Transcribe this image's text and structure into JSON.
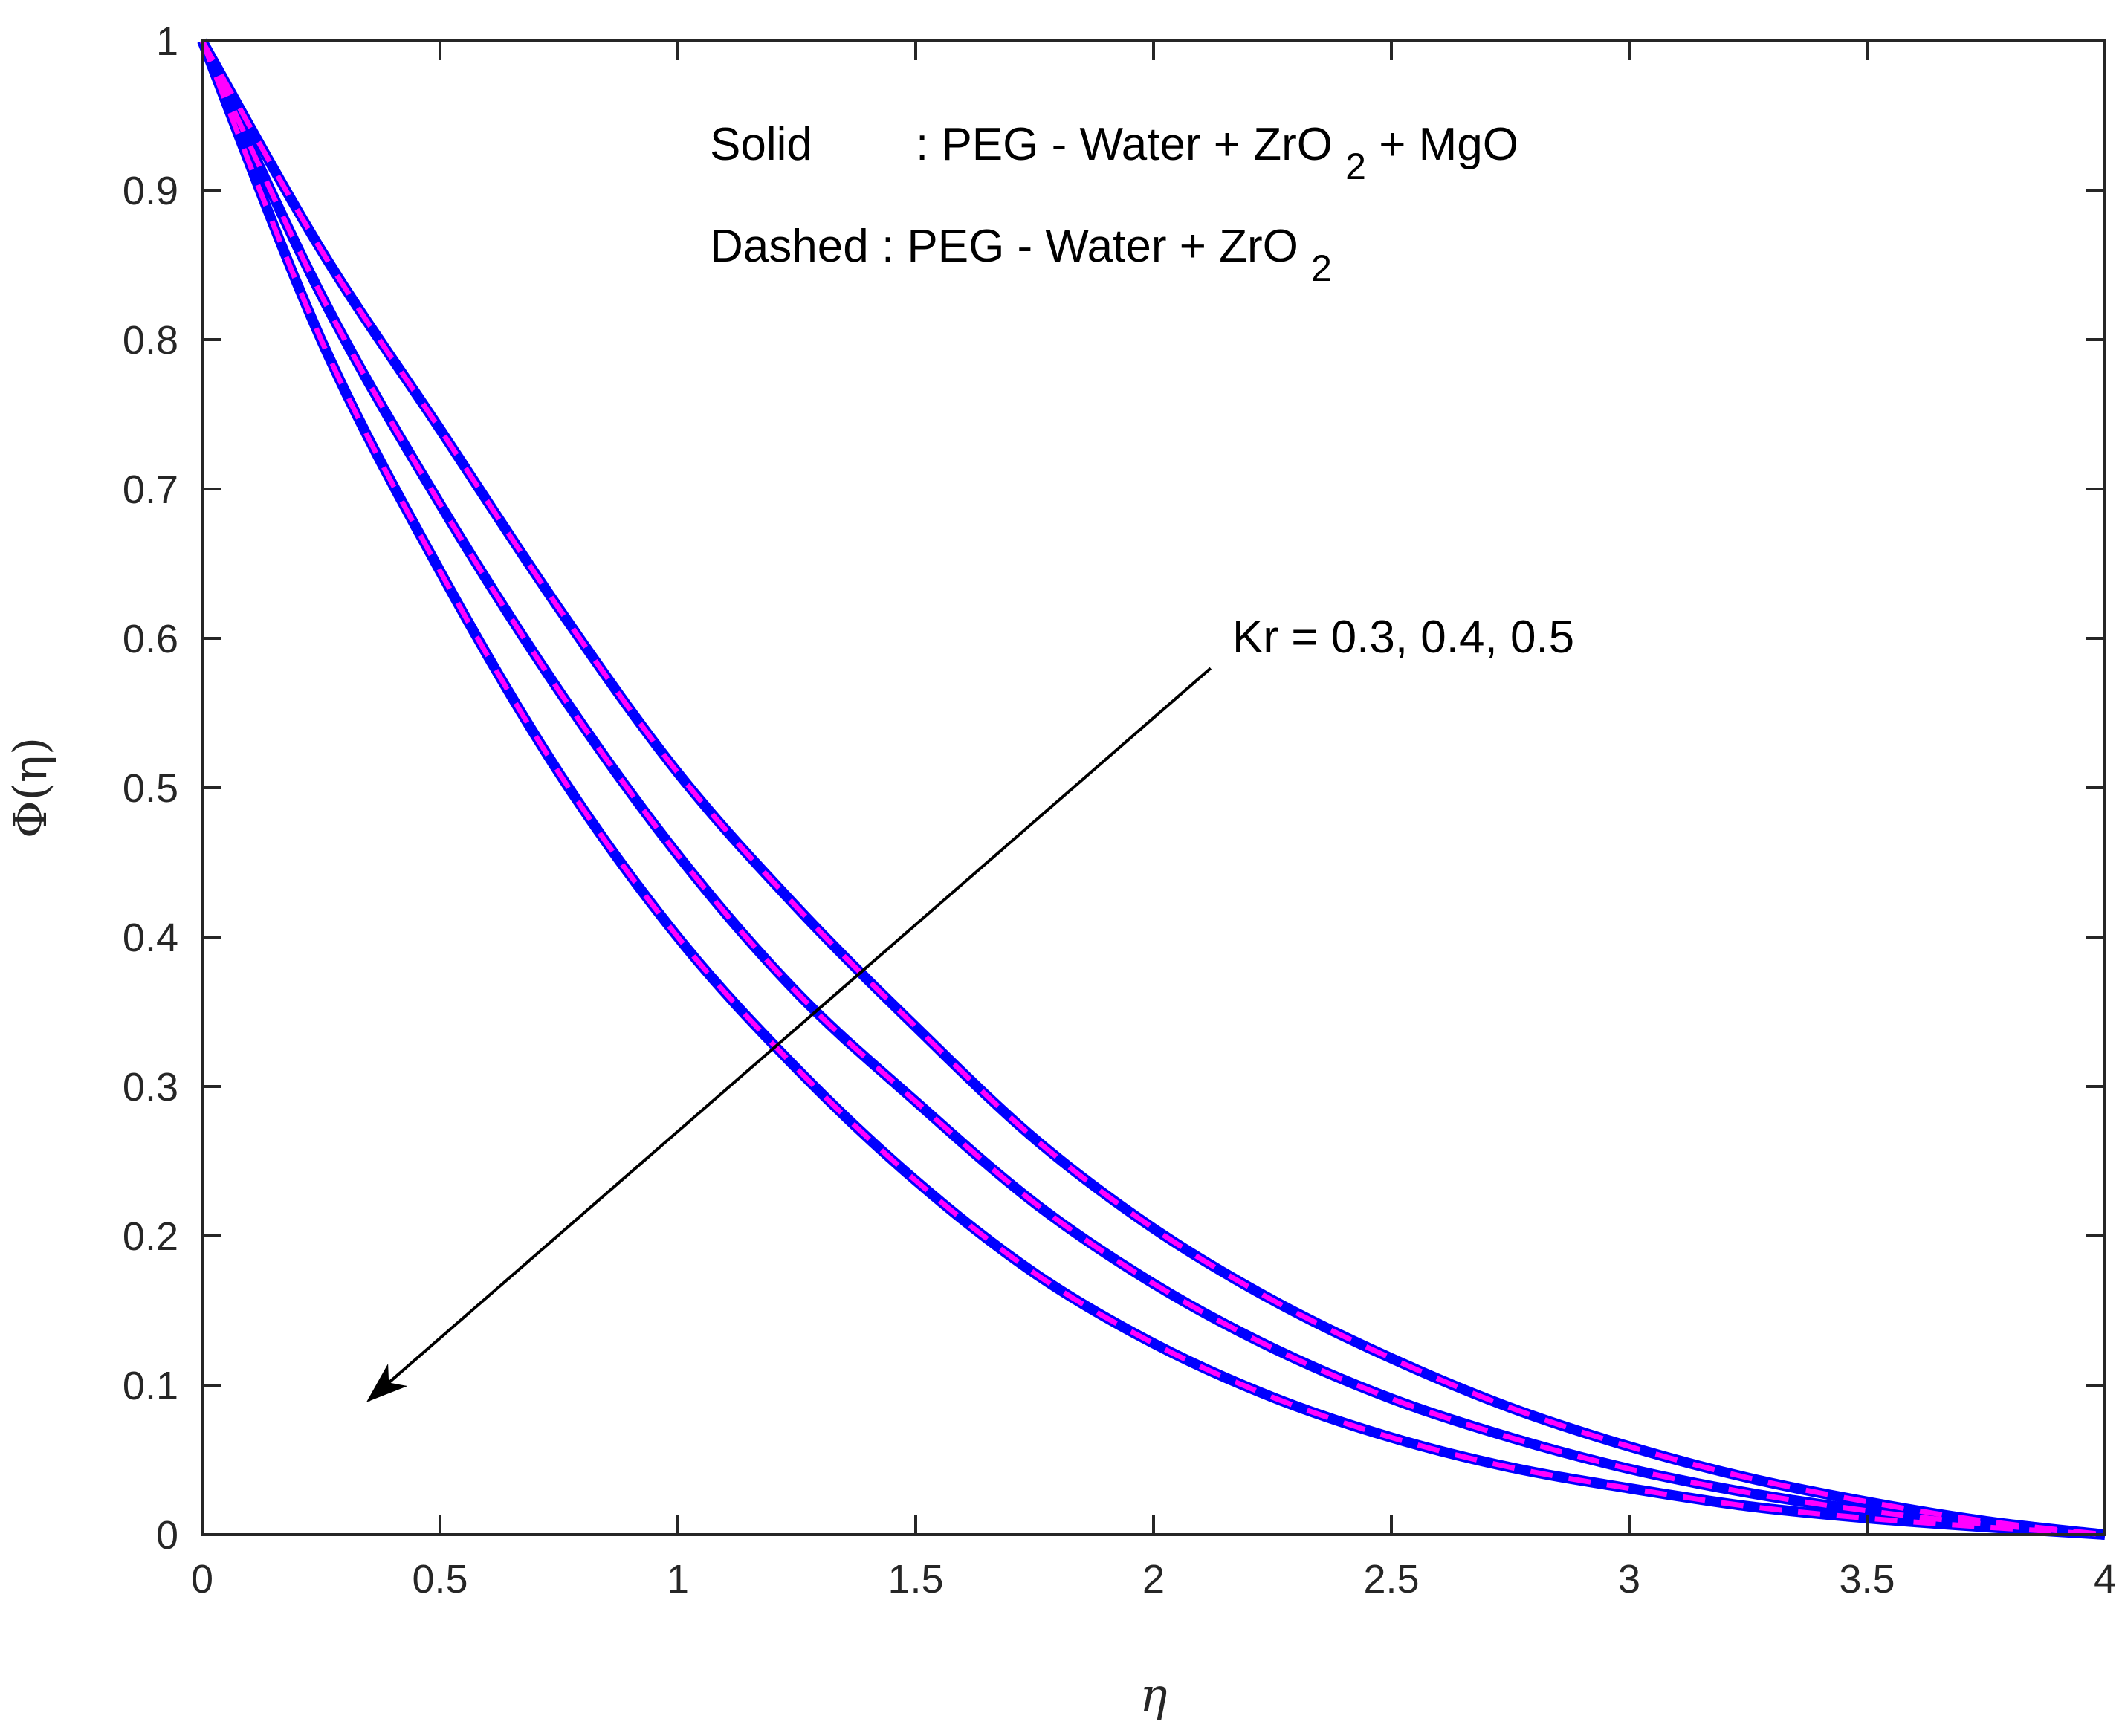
{
  "chart_data": {
    "type": "line",
    "title": "",
    "xlabel": "η",
    "ylabel": "Φ(η)",
    "xlim": [
      0,
      4
    ],
    "ylim": [
      0,
      1
    ],
    "xticks": [
      0,
      0.5,
      1,
      1.5,
      2,
      2.5,
      3,
      3.5,
      4
    ],
    "xtick_labels": [
      "0",
      "0.5",
      "1",
      "1.5",
      "2",
      "2.5",
      "3",
      "3.5",
      "4"
    ],
    "yticks": [
      0,
      0.1,
      0.2,
      0.3,
      0.4,
      0.5,
      0.6,
      0.7,
      0.8,
      0.9,
      1
    ],
    "ytick_labels": [
      "0",
      "0.1",
      "0.2",
      "0.3",
      "0.4",
      "0.5",
      "0.6",
      "0.7",
      "0.8",
      "0.9",
      "1"
    ],
    "grid": false,
    "x": [
      0,
      0.25,
      0.5,
      0.75,
      1,
      1.25,
      1.5,
      1.75,
      2,
      2.25,
      2.5,
      2.75,
      3,
      3.25,
      3.5,
      3.75,
      4
    ],
    "series": [
      {
        "name": "Kr = 0.3 (PEG - Water + ZrO2 + MgO)",
        "style": "solid",
        "color": "#0000ff",
        "values": [
          1,
          0.86,
          0.74,
          0.62,
          0.51,
          0.42,
          0.34,
          0.265,
          0.205,
          0.157,
          0.118,
          0.085,
          0.059,
          0.038,
          0.022,
          0.009,
          0
        ]
      },
      {
        "name": "Kr = 0.4 (PEG - Water + ZrO2 + MgO)",
        "style": "solid",
        "color": "#0000ff",
        "values": [
          1,
          0.83,
          0.69,
          0.565,
          0.455,
          0.363,
          0.29,
          0.222,
          0.168,
          0.125,
          0.091,
          0.065,
          0.044,
          0.028,
          0.016,
          0.007,
          0
        ]
      },
      {
        "name": "Kr = 0.5 (PEG - Water + ZrO2 + MgO)",
        "style": "solid",
        "color": "#0000ff",
        "values": [
          1,
          0.8,
          0.645,
          0.51,
          0.4,
          0.312,
          0.237,
          0.175,
          0.128,
          0.092,
          0.065,
          0.045,
          0.031,
          0.019,
          0.011,
          0.005,
          0
        ]
      },
      {
        "name": "Kr = 0.3 (PEG - Water + ZrO2)",
        "style": "dashed",
        "color": "#ff00ff",
        "values": [
          1,
          0.86,
          0.74,
          0.62,
          0.51,
          0.42,
          0.34,
          0.265,
          0.205,
          0.157,
          0.118,
          0.085,
          0.059,
          0.038,
          0.022,
          0.009,
          0
        ]
      },
      {
        "name": "Kr = 0.4 (PEG - Water + ZrO2)",
        "style": "dashed",
        "color": "#ff00ff",
        "values": [
          1,
          0.83,
          0.69,
          0.565,
          0.455,
          0.363,
          0.29,
          0.222,
          0.168,
          0.125,
          0.091,
          0.065,
          0.044,
          0.028,
          0.016,
          0.007,
          0
        ]
      },
      {
        "name": "Kr = 0.5 (PEG - Water + ZrO2)",
        "style": "dashed",
        "color": "#ff00ff",
        "values": [
          1,
          0.8,
          0.645,
          0.51,
          0.4,
          0.312,
          0.237,
          0.175,
          0.128,
          0.092,
          0.065,
          0.045,
          0.031,
          0.019,
          0.011,
          0.005,
          0
        ]
      }
    ],
    "annotations": {
      "solid_label": "Solid",
      "solid_desc_main": ": PEG - Water + ZrO",
      "solid_desc_sub": "2",
      "solid_desc_tail": " + MgO",
      "dashed_label": "Dashed",
      "dashed_desc_main": " : PEG - Water + ZrO",
      "dashed_desc_sub": "2",
      "arrow_label": "Kr = 0.3, 0.4, 0.5",
      "arrow_from": [
        2.12,
        0.58
      ],
      "arrow_to": [
        0.35,
        0.09
      ]
    }
  }
}
